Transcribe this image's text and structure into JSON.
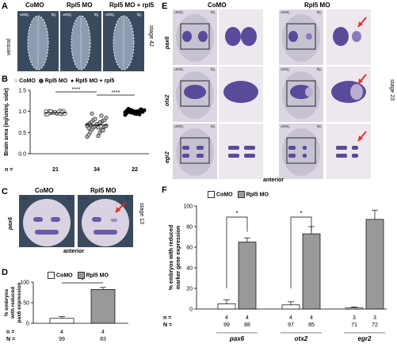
{
  "panelA": {
    "letter": "A",
    "headers": [
      "CoMO",
      "Rpl5 MO",
      "Rpl5 MO + rpl5"
    ],
    "tag_uninj": "uninj.",
    "tag_inj": "inj.",
    "side_label": "ventral",
    "stage_label": "stage 42"
  },
  "panelB": {
    "letter": "B",
    "legend": [
      "CoMO",
      "Rpl5 MO",
      "Rpl5 MO + rpl5"
    ],
    "n_label": "n =",
    "significance": [
      "****",
      "****"
    ]
  },
  "panelC": {
    "letter": "C",
    "headers": [
      "CoMO",
      "Rpl5 MO"
    ],
    "tag_uninj": "uninj.",
    "tag_inj": "inj.",
    "gene": "pax6",
    "stage_label": "stage 13",
    "bottom_label": "anterior"
  },
  "panelD": {
    "letter": "D",
    "legend": [
      "CoMO",
      "Rpl5 MO"
    ],
    "n_label": "n =",
    "N_label": "N =",
    "n_values": [
      "4",
      "4"
    ],
    "N_values": [
      "99",
      "83"
    ],
    "significance": "*"
  },
  "panelE": {
    "letter": "E",
    "headers": [
      "CoMO",
      "Rpl5 MO"
    ],
    "tag_uninj": "uninj.",
    "tag_inj": "inj.",
    "genes": [
      "pax6",
      "otx2",
      "egr2"
    ],
    "stage_label": "stage 23",
    "bottom_label": "anterior"
  },
  "panelF": {
    "letter": "F",
    "legend": [
      "CoMO",
      "Rpl5 MO"
    ],
    "n_label": "n =",
    "N_label": "N =",
    "n_values": [
      "4",
      "4",
      "4",
      "4",
      "3",
      "3"
    ],
    "N_values": [
      "99",
      "88",
      "97",
      "85",
      "71",
      "72"
    ],
    "significance": [
      "*",
      "*"
    ]
  },
  "colors": {
    "como_fill": "#ffffff",
    "mo_fill": "#999999",
    "arrow": "#e0302a",
    "stain": "#5a4a9a"
  },
  "chart_data": [
    {
      "type": "scatter",
      "title": "",
      "ylabel": "Brain area (inj/uninj. side)",
      "ylim": [
        0,
        1.5
      ],
      "yticks": [
        0.0,
        0.5,
        1.0,
        1.5
      ],
      "categories": [
        "CoMO",
        "Rpl5 MO",
        "Rpl5 MO + rpl5"
      ],
      "n": [
        21,
        34,
        22
      ],
      "series": [
        {
          "name": "CoMO",
          "mean": 0.97,
          "values": [
            0.93,
            0.95,
            0.97,
            0.98,
            1.0,
            1.02,
            0.96,
            0.94,
            0.99,
            1.01,
            0.97,
            0.95,
            0.98,
            1.0,
            0.96,
            0.93,
            0.99,
            0.97,
            0.95,
            1.0,
            0.98
          ]
        },
        {
          "name": "Rpl5 MO",
          "mean": 0.68,
          "values": [
            0.4,
            0.42,
            0.45,
            0.5,
            0.52,
            0.55,
            0.58,
            0.6,
            0.62,
            0.64,
            0.65,
            0.66,
            0.67,
            0.68,
            0.7,
            0.7,
            0.72,
            0.73,
            0.75,
            0.76,
            0.78,
            0.8,
            0.8,
            0.82,
            0.85,
            0.7,
            0.66,
            0.62,
            0.6,
            0.74,
            0.68,
            0.9,
            0.95,
            0.55
          ]
        },
        {
          "name": "Rpl5 MO + rpl5",
          "mean": 1.0,
          "values": [
            0.92,
            0.94,
            0.96,
            0.98,
            1.0,
            1.02,
            1.04,
            1.05,
            0.97,
            0.99,
            1.01,
            1.03,
            0.95,
            0.98,
            1.0,
            1.02,
            0.96,
            1.06,
            0.93,
            0.99,
            1.01,
            1.03
          ]
        }
      ]
    },
    {
      "type": "bar",
      "title": "",
      "ylabel": "% embryos with reduced pax6 expression",
      "ylim": [
        0,
        100
      ],
      "yticks": [
        0,
        50,
        100
      ],
      "categories": [
        "CoMO",
        "Rpl5 MO"
      ],
      "values": [
        12,
        82
      ],
      "errors": [
        4,
        5
      ]
    },
    {
      "type": "bar",
      "title": "",
      "ylabel": "% embryos with reduced marker gene expression",
      "ylim": [
        0,
        100
      ],
      "yticks": [
        0,
        20,
        40,
        60,
        80,
        100
      ],
      "categories": [
        "pax6",
        "otx2",
        "egr2"
      ],
      "series": [
        {
          "name": "CoMO",
          "values": [
            5,
            4,
            1
          ],
          "errors": [
            4,
            3,
            1
          ]
        },
        {
          "name": "Rpl5 MO",
          "values": [
            65,
            73,
            87
          ],
          "errors": [
            4,
            7,
            9
          ]
        }
      ]
    }
  ]
}
